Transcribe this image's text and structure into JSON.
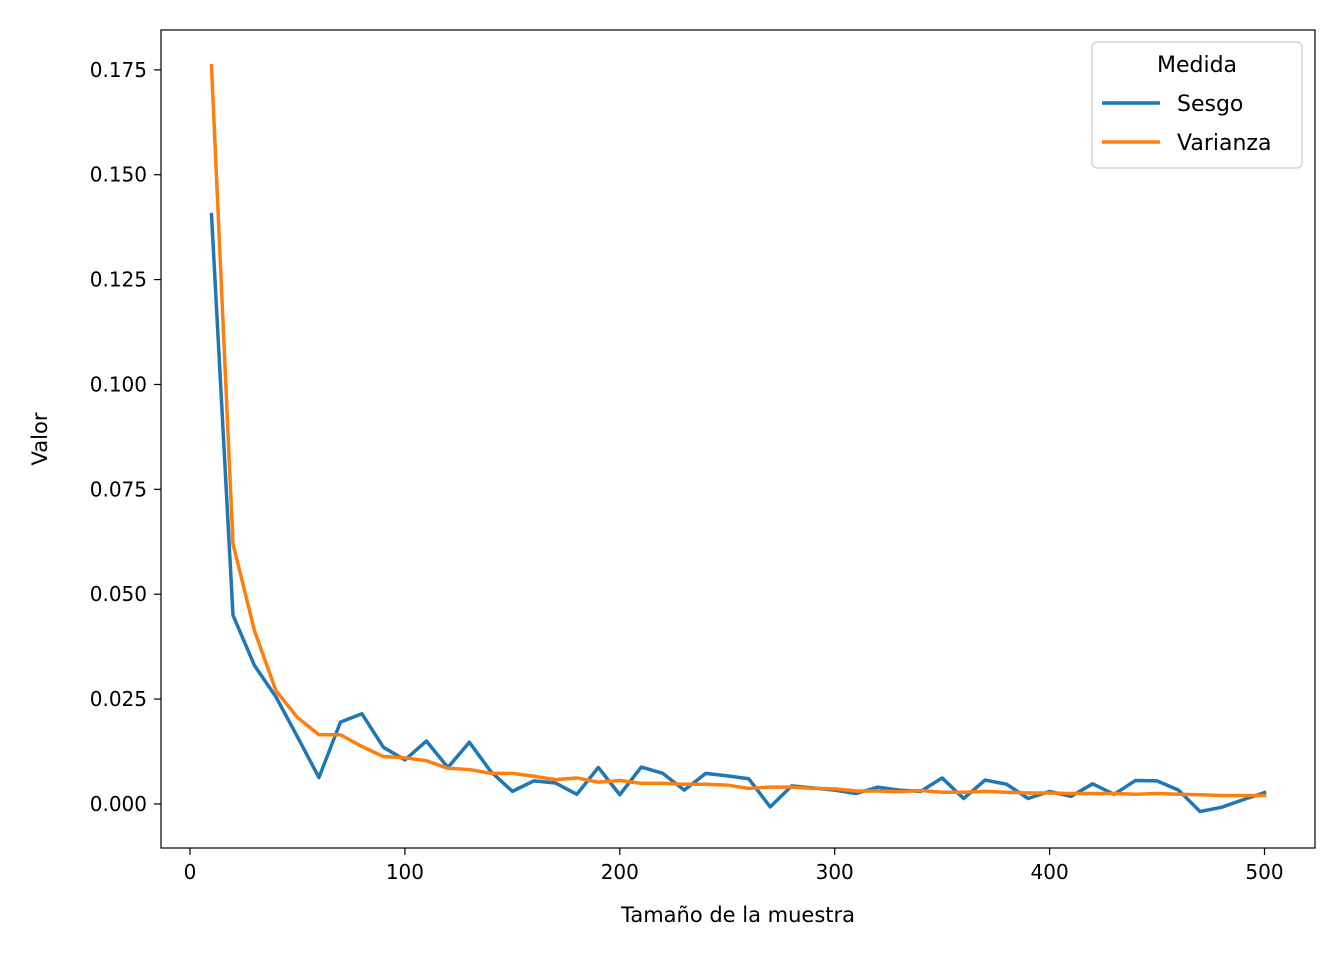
{
  "chart_data": {
    "type": "line",
    "xlabel": "Tamaño de la muestra",
    "ylabel": "Valor",
    "xlim": [
      -13.5,
      523.5
    ],
    "ylim": [
      -0.0105,
      0.1845
    ],
    "xticks": [
      0,
      100,
      200,
      300,
      400,
      500
    ],
    "xtick_labels": [
      "0",
      "100",
      "200",
      "300",
      "400",
      "500"
    ],
    "yticks": [
      0.0,
      0.025,
      0.05,
      0.075,
      0.1,
      0.125,
      0.15,
      0.175
    ],
    "ytick_labels": [
      "0.000",
      "0.025",
      "0.050",
      "0.075",
      "0.100",
      "0.125",
      "0.150",
      "0.175"
    ],
    "grid": false,
    "legend": {
      "title": "Medida",
      "placement": "top-right"
    },
    "x": [
      10,
      20,
      30,
      40,
      50,
      60,
      70,
      80,
      90,
      100,
      110,
      120,
      130,
      140,
      150,
      160,
      170,
      180,
      190,
      200,
      210,
      220,
      230,
      240,
      250,
      260,
      270,
      280,
      290,
      300,
      310,
      320,
      330,
      340,
      350,
      360,
      370,
      380,
      390,
      400,
      410,
      420,
      430,
      440,
      450,
      460,
      470,
      480,
      490,
      500
    ],
    "series": [
      {
        "name": "Sesgo",
        "color": "#1f77b4",
        "values": [
          0.1405,
          0.045,
          0.033,
          0.0255,
          0.016,
          0.0063,
          0.0195,
          0.0215,
          0.0135,
          0.0105,
          0.015,
          0.0087,
          0.0147,
          0.0077,
          0.003,
          0.0055,
          0.005,
          0.0023,
          0.0087,
          0.0022,
          0.0088,
          0.0073,
          0.0033,
          0.0073,
          0.0067,
          0.006,
          -0.0007,
          0.0043,
          0.0038,
          0.0033,
          0.0025,
          0.004,
          0.0033,
          0.003,
          0.0062,
          0.0013,
          0.0057,
          0.0047,
          0.0013,
          0.003,
          0.0018,
          0.0048,
          0.0023,
          0.0056,
          0.0055,
          0.0033,
          -0.0018,
          -0.0008,
          0.001,
          0.0027
        ]
      },
      {
        "name": "Varianza",
        "color": "#ff7f0e",
        "values": [
          0.176,
          0.062,
          0.0413,
          0.027,
          0.0206,
          0.0165,
          0.0165,
          0.0137,
          0.0113,
          0.011,
          0.0103,
          0.0085,
          0.0082,
          0.0073,
          0.0073,
          0.0066,
          0.0058,
          0.0062,
          0.0052,
          0.0056,
          0.0049,
          0.0049,
          0.0047,
          0.0047,
          0.0045,
          0.0037,
          0.004,
          0.004,
          0.0037,
          0.0036,
          0.0031,
          0.0031,
          0.0029,
          0.0032,
          0.0028,
          0.0028,
          0.003,
          0.0028,
          0.0026,
          0.0026,
          0.0025,
          0.0025,
          0.0025,
          0.0023,
          0.0025,
          0.0023,
          0.0022,
          0.002,
          0.002,
          0.002
        ]
      }
    ]
  }
}
